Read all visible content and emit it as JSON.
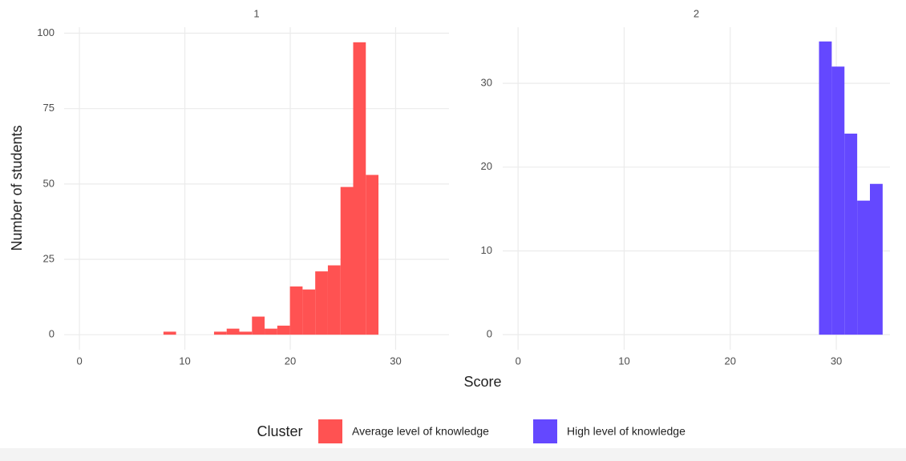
{
  "chart_data": [
    {
      "type": "histogram",
      "title": "1",
      "name": "Average level of knowledge",
      "color": "#ff5252",
      "bins": [
        7.97,
        9.17,
        10.37,
        11.57,
        12.77,
        13.97,
        15.17,
        16.37,
        17.57,
        18.77,
        19.97,
        21.17,
        22.37,
        23.57,
        24.77,
        25.97,
        27.17,
        28.37
      ],
      "values": [
        1,
        0,
        0,
        0,
        1,
        2,
        1,
        6,
        2,
        3,
        16,
        15,
        21,
        23,
        49,
        97,
        53
      ],
      "xlim": [
        -1.45,
        35.06
      ],
      "ylim": [
        -5,
        102
      ],
      "xticks": [
        0,
        10,
        20,
        30
      ],
      "yticks": [
        0,
        25,
        50,
        75,
        100
      ],
      "grid": true
    },
    {
      "type": "histogram",
      "title": "2",
      "name": "High level of knowledge",
      "color": "#6448ff",
      "bins": [
        28.37,
        29.57,
        30.77,
        31.97,
        33.17,
        34.37
      ],
      "values": [
        35,
        32,
        24,
        16,
        18
      ],
      "xlim": [
        -1.45,
        35.06
      ],
      "ylim": [
        -1.8,
        36.7
      ],
      "xticks": [
        0,
        10,
        20,
        30
      ],
      "yticks": [
        0,
        10,
        20,
        30
      ],
      "grid": true
    }
  ],
  "xlabel": "Score",
  "ylabel": "Number of students",
  "legend_title": "Cluster"
}
